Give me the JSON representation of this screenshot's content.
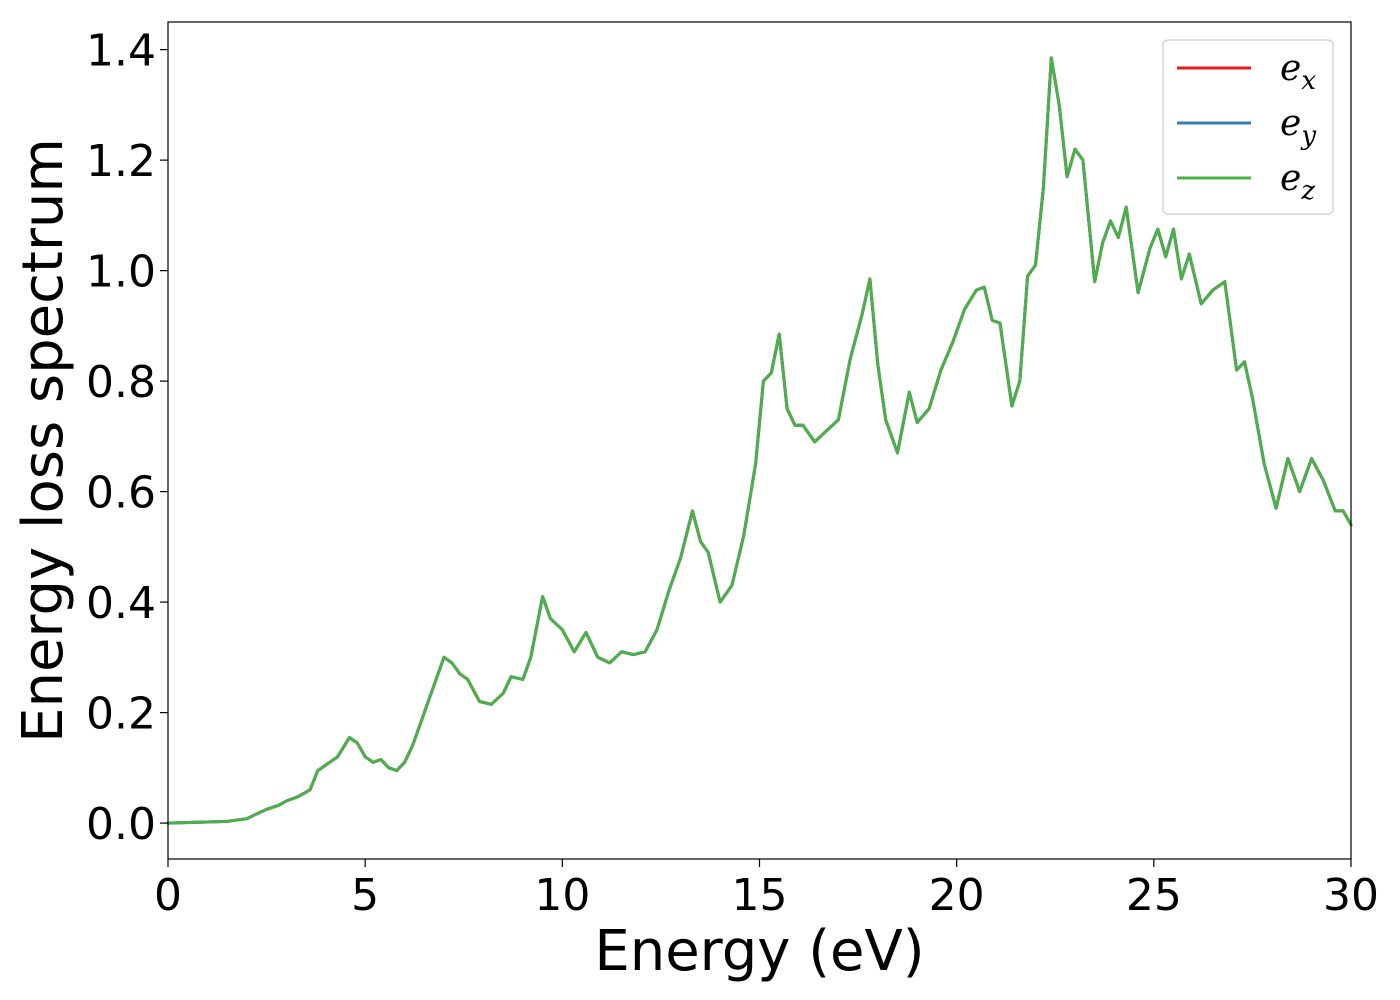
{
  "chart_data": {
    "type": "line",
    "title": "",
    "xlabel": "Energy (eV)",
    "ylabel": "Energy loss spectrum",
    "xlim": [
      0,
      30
    ],
    "ylim": [
      -0.065,
      1.45
    ],
    "xticks": [
      0,
      5,
      10,
      15,
      20,
      25,
      30
    ],
    "xtick_labels": [
      "0",
      "5",
      "10",
      "15",
      "20",
      "25",
      "30"
    ],
    "yticks": [
      0.0,
      0.2,
      0.4,
      0.6,
      0.8,
      1.0,
      1.2,
      1.4
    ],
    "ytick_labels": [
      "0.0",
      "0.2",
      "0.4",
      "0.6",
      "0.8",
      "1.0",
      "1.2",
      "1.4"
    ],
    "grid": false,
    "legend_position": "top-right",
    "x": [
      0,
      0.5,
      1,
      1.5,
      2,
      2.2,
      2.5,
      2.8,
      3.0,
      3.3,
      3.6,
      3.8,
      4.0,
      4.3,
      4.6,
      4.8,
      5.0,
      5.2,
      5.4,
      5.6,
      5.8,
      6.0,
      6.2,
      6.5,
      6.8,
      7.0,
      7.2,
      7.4,
      7.6,
      7.9,
      8.2,
      8.5,
      8.7,
      9.0,
      9.2,
      9.5,
      9.7,
      10.0,
      10.3,
      10.6,
      10.9,
      11.2,
      11.5,
      11.8,
      12.1,
      12.4,
      12.7,
      13.0,
      13.3,
      13.5,
      13.7,
      14.0,
      14.3,
      14.6,
      14.9,
      15.1,
      15.3,
      15.5,
      15.7,
      15.9,
      16.1,
      16.4,
      16.7,
      17.0,
      17.3,
      17.6,
      17.8,
      18.0,
      18.2,
      18.5,
      18.8,
      19.0,
      19.3,
      19.6,
      19.9,
      20.2,
      20.5,
      20.7,
      20.9,
      21.1,
      21.4,
      21.6,
      21.8,
      22.0,
      22.2,
      22.4,
      22.6,
      22.8,
      23.0,
      23.2,
      23.5,
      23.7,
      23.9,
      24.1,
      24.3,
      24.6,
      24.9,
      25.1,
      25.3,
      25.5,
      25.7,
      25.9,
      26.2,
      26.5,
      26.8,
      27.1,
      27.3,
      27.5,
      27.8,
      28.1,
      28.4,
      28.7,
      29.0,
      29.3,
      29.6,
      29.8,
      30.0
    ],
    "series": [
      {
        "name": "e_x",
        "color": "#e41a1c",
        "values": [
          0,
          0.001,
          0.002,
          0.003,
          0.008,
          0.015,
          0.025,
          0.032,
          0.04,
          0.048,
          0.06,
          0.095,
          0.105,
          0.12,
          0.155,
          0.145,
          0.12,
          0.11,
          0.115,
          0.1,
          0.095,
          0.11,
          0.14,
          0.2,
          0.26,
          0.3,
          0.29,
          0.27,
          0.26,
          0.22,
          0.215,
          0.235,
          0.265,
          0.26,
          0.3,
          0.41,
          0.37,
          0.35,
          0.31,
          0.345,
          0.3,
          0.29,
          0.31,
          0.305,
          0.31,
          0.35,
          0.42,
          0.48,
          0.565,
          0.51,
          0.49,
          0.4,
          0.43,
          0.52,
          0.65,
          0.8,
          0.815,
          0.885,
          0.75,
          0.72,
          0.72,
          0.69,
          0.71,
          0.73,
          0.84,
          0.92,
          0.985,
          0.83,
          0.73,
          0.67,
          0.78,
          0.725,
          0.75,
          0.82,
          0.87,
          0.93,
          0.965,
          0.97,
          0.91,
          0.905,
          0.755,
          0.8,
          0.99,
          1.01,
          1.15,
          1.385,
          1.3,
          1.17,
          1.22,
          1.2,
          0.98,
          1.05,
          1.09,
          1.06,
          1.115,
          0.96,
          1.04,
          1.075,
          1.025,
          1.075,
          0.985,
          1.03,
          0.94,
          0.965,
          0.98,
          0.82,
          0.835,
          0.77,
          0.65,
          0.57,
          0.66,
          0.6,
          0.66,
          0.62,
          0.565,
          0.565,
          0.54
        ]
      },
      {
        "name": "e_y",
        "color": "#377eb8",
        "values": [
          0,
          0.001,
          0.002,
          0.003,
          0.008,
          0.015,
          0.025,
          0.032,
          0.04,
          0.048,
          0.06,
          0.095,
          0.105,
          0.12,
          0.155,
          0.145,
          0.12,
          0.11,
          0.115,
          0.1,
          0.095,
          0.11,
          0.14,
          0.2,
          0.26,
          0.3,
          0.29,
          0.27,
          0.26,
          0.22,
          0.215,
          0.235,
          0.265,
          0.26,
          0.3,
          0.41,
          0.37,
          0.35,
          0.31,
          0.345,
          0.3,
          0.29,
          0.31,
          0.305,
          0.31,
          0.35,
          0.42,
          0.48,
          0.565,
          0.51,
          0.49,
          0.4,
          0.43,
          0.52,
          0.65,
          0.8,
          0.815,
          0.885,
          0.75,
          0.72,
          0.72,
          0.69,
          0.71,
          0.73,
          0.84,
          0.92,
          0.985,
          0.83,
          0.73,
          0.67,
          0.78,
          0.725,
          0.75,
          0.82,
          0.87,
          0.93,
          0.965,
          0.97,
          0.91,
          0.905,
          0.755,
          0.8,
          0.99,
          1.01,
          1.15,
          1.385,
          1.3,
          1.17,
          1.22,
          1.2,
          0.98,
          1.05,
          1.09,
          1.06,
          1.115,
          0.96,
          1.04,
          1.075,
          1.025,
          1.075,
          0.985,
          1.03,
          0.94,
          0.965,
          0.98,
          0.82,
          0.835,
          0.77,
          0.65,
          0.57,
          0.66,
          0.6,
          0.66,
          0.62,
          0.565,
          0.565,
          0.54
        ]
      },
      {
        "name": "e_z",
        "color": "#4daf4a",
        "values": [
          0,
          0.001,
          0.002,
          0.003,
          0.008,
          0.015,
          0.025,
          0.032,
          0.04,
          0.048,
          0.06,
          0.095,
          0.105,
          0.12,
          0.155,
          0.145,
          0.12,
          0.11,
          0.115,
          0.1,
          0.095,
          0.11,
          0.14,
          0.2,
          0.26,
          0.3,
          0.29,
          0.27,
          0.26,
          0.22,
          0.215,
          0.235,
          0.265,
          0.26,
          0.3,
          0.41,
          0.37,
          0.35,
          0.31,
          0.345,
          0.3,
          0.29,
          0.31,
          0.305,
          0.31,
          0.35,
          0.42,
          0.48,
          0.565,
          0.51,
          0.49,
          0.4,
          0.43,
          0.52,
          0.65,
          0.8,
          0.815,
          0.885,
          0.75,
          0.72,
          0.72,
          0.69,
          0.71,
          0.73,
          0.84,
          0.92,
          0.985,
          0.83,
          0.73,
          0.67,
          0.78,
          0.725,
          0.75,
          0.82,
          0.87,
          0.93,
          0.965,
          0.97,
          0.91,
          0.905,
          0.755,
          0.8,
          0.99,
          1.01,
          1.15,
          1.385,
          1.3,
          1.17,
          1.22,
          1.2,
          0.98,
          1.05,
          1.09,
          1.06,
          1.115,
          0.96,
          1.04,
          1.075,
          1.025,
          1.075,
          0.985,
          1.03,
          0.94,
          0.965,
          0.98,
          0.82,
          0.835,
          0.77,
          0.65,
          0.57,
          0.66,
          0.6,
          0.66,
          0.62,
          0.565,
          0.565,
          0.54
        ]
      }
    ],
    "legend": [
      {
        "base": "e",
        "sub": "x",
        "color": "#e41a1c"
      },
      {
        "base": "e",
        "sub": "y",
        "color": "#377eb8"
      },
      {
        "base": "e",
        "sub": "z",
        "color": "#4daf4a"
      }
    ]
  }
}
